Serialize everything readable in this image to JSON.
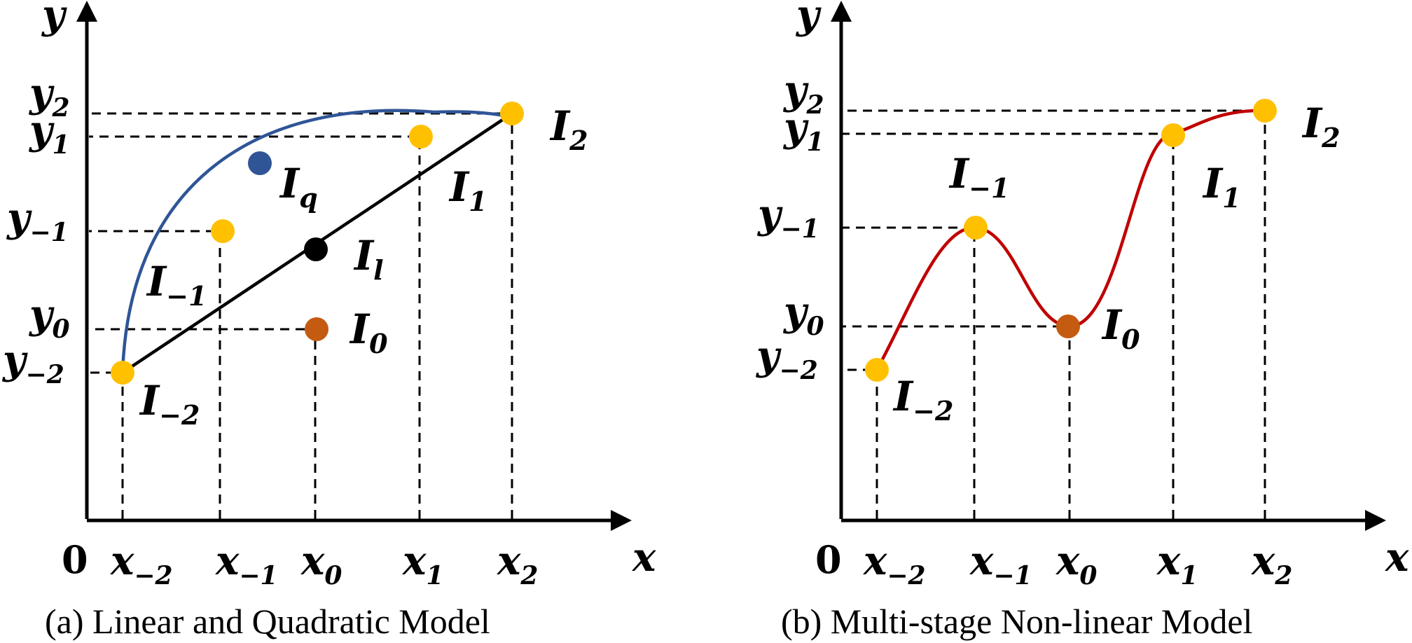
{
  "colors": {
    "point_yellow": "#FFC000",
    "point_orange": "#C55A11",
    "point_blue": "#2F5597",
    "point_black": "#000000",
    "quadratic_curve": "#2F5597",
    "linear_line": "#000000",
    "nonlinear_curve": "#C00000"
  },
  "panel_a": {
    "caption": "(a) Linear and Quadratic Model",
    "axis_y": "y",
    "axis_x": "x",
    "origin": "0",
    "x_ticks": [
      {
        "base": "x",
        "sub": "−2"
      },
      {
        "base": "x",
        "sub": "−1"
      },
      {
        "base": "x",
        "sub": "0"
      },
      {
        "base": "x",
        "sub": "1"
      },
      {
        "base": "x",
        "sub": "2"
      }
    ],
    "y_ticks": [
      {
        "base": "y",
        "sub": "2"
      },
      {
        "base": "y",
        "sub": "1"
      },
      {
        "base": "y",
        "sub": "−1"
      },
      {
        "base": "y",
        "sub": "0"
      },
      {
        "base": "y",
        "sub": "−2"
      }
    ],
    "point_labels": {
      "I_2": {
        "base": "I",
        "sub": "2"
      },
      "I_1": {
        "base": "I",
        "sub": "1"
      },
      "I_q": {
        "base": "I",
        "sub": "q"
      },
      "I_l": {
        "base": "I",
        "sub": "l"
      },
      "I_m1": {
        "base": "I",
        "sub": "−1"
      },
      "I_0": {
        "base": "I",
        "sub": "0"
      },
      "I_m2": {
        "base": "I",
        "sub": "−2"
      }
    }
  },
  "panel_b": {
    "caption": "(b) Multi-stage Non-linear Model",
    "axis_y": "y",
    "axis_x": "x",
    "origin": "0",
    "x_ticks": [
      {
        "base": "x",
        "sub": "−2"
      },
      {
        "base": "x",
        "sub": "−1"
      },
      {
        "base": "x",
        "sub": "0"
      },
      {
        "base": "x",
        "sub": "1"
      },
      {
        "base": "x",
        "sub": "2"
      }
    ],
    "y_ticks": [
      {
        "base": "y",
        "sub": "2"
      },
      {
        "base": "y",
        "sub": "1"
      },
      {
        "base": "y",
        "sub": "−1"
      },
      {
        "base": "y",
        "sub": "0"
      },
      {
        "base": "y",
        "sub": "−2"
      }
    ],
    "point_labels": {
      "I_m1": {
        "base": "I",
        "sub": "−1"
      },
      "I_2": {
        "base": "I",
        "sub": "2"
      },
      "I_1": {
        "base": "I",
        "sub": "1"
      },
      "I_0": {
        "base": "I",
        "sub": "0"
      },
      "I_m2": {
        "base": "I",
        "sub": "−2"
      }
    }
  }
}
